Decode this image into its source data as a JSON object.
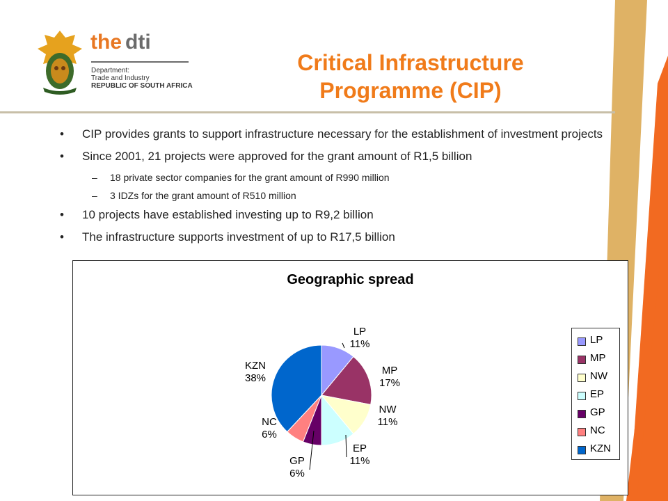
{
  "brand": {
    "the": "the",
    "dti": "dti",
    "line1": "Department:",
    "line2": "Trade and Industry",
    "line3": "REPUBLIC OF SOUTH AFRICA"
  },
  "title_line1": "Critical Infrastructure",
  "title_line2": "Programme (CIP)",
  "bullets": [
    {
      "text": "CIP provides grants to support infrastructure necessary for the establishment of investment projects",
      "subs": []
    },
    {
      "text": "Since 2001, 21 projects were approved for the grant amount of R1,5 billion",
      "subs": [
        "18 private sector companies for the grant amount of R990 million",
        "3 IDZs for the grant amount of R510 million"
      ]
    },
    {
      "text": "10 projects have established investing up to R9,2 billion",
      "subs": []
    },
    {
      "text": "The infrastructure supports investment of up to R17,5 billion",
      "subs": []
    }
  ],
  "bullet_glyph": "•",
  "dash_glyph": "–",
  "colors": {
    "title": "#f07b1a",
    "stripe_orange": "#f26a21",
    "stripe_gold": "#d9a54a"
  },
  "chart_data": {
    "type": "pie",
    "title": "Geographic spread",
    "legend_position": "right",
    "slices": [
      {
        "label": "LP",
        "value": 11,
        "display": "11%",
        "color": "#9999ff"
      },
      {
        "label": "MP",
        "value": 17,
        "display": "17%",
        "color": "#993366"
      },
      {
        "label": "NW",
        "value": 11,
        "display": "11%",
        "color": "#ffffcc"
      },
      {
        "label": "EP",
        "value": 11,
        "display": "11%",
        "color": "#ccffff"
      },
      {
        "label": "GP",
        "value": 6,
        "display": "6%",
        "color": "#660066"
      },
      {
        "label": "NC",
        "value": 6,
        "display": "6%",
        "color": "#ff8080"
      },
      {
        "label": "KZN",
        "value": 38,
        "display": "38%",
        "color": "#0066cc"
      }
    ]
  }
}
